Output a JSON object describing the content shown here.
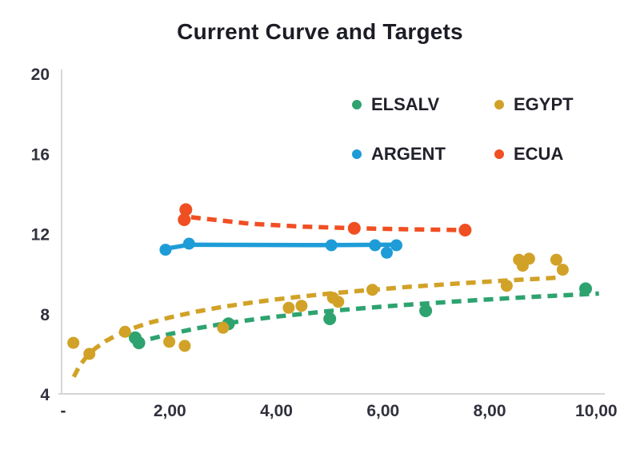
{
  "chart_data": {
    "type": "scatter",
    "title": "Current Curve and Targets",
    "background": "#ffffff",
    "axis_line_color": "#d6d6d6",
    "tick_text_color": "#31313e",
    "grid": false,
    "legend_position": "upper-right",
    "x_axis": {
      "min": 0,
      "max": 10.16,
      "ticks": [
        {
          "value": 0,
          "label": "-"
        },
        {
          "value": 2,
          "label": "2,00"
        },
        {
          "value": 4,
          "label": "4,00"
        },
        {
          "value": 6,
          "label": "6,00"
        },
        {
          "value": 8,
          "label": "8,00"
        },
        {
          "value": 10,
          "label": "10,00"
        }
      ]
    },
    "y_axis": {
      "min": 4,
      "max": 20,
      "ticks": [
        {
          "value": 4,
          "label": "4"
        },
        {
          "value": 8,
          "label": "8"
        },
        {
          "value": 12,
          "label": "12"
        },
        {
          "value": 16,
          "label": "16"
        },
        {
          "value": 20,
          "label": "20"
        }
      ]
    },
    "series": [
      {
        "name": "ELSALV",
        "color": "#2ea36f",
        "line_style": "dashed",
        "marker_radius": 8,
        "points": [
          [
            1.35,
            6.8
          ],
          [
            1.42,
            6.55
          ],
          [
            3.1,
            7.5
          ],
          [
            5.0,
            7.75
          ],
          [
            6.8,
            8.15
          ],
          [
            9.8,
            9.25
          ]
        ],
        "trend": [
          [
            1.35,
            6.5
          ],
          [
            1.6,
            6.72
          ],
          [
            2.0,
            6.99
          ],
          [
            2.5,
            7.27
          ],
          [
            3.0,
            7.5
          ],
          [
            3.5,
            7.69
          ],
          [
            4.0,
            7.86
          ],
          [
            4.5,
            8.0
          ],
          [
            5.0,
            8.14
          ],
          [
            5.5,
            8.25
          ],
          [
            6.0,
            8.36
          ],
          [
            6.5,
            8.46
          ],
          [
            7.0,
            8.55
          ],
          [
            7.5,
            8.64
          ],
          [
            8.0,
            8.72
          ],
          [
            8.5,
            8.8
          ],
          [
            9.0,
            8.87
          ],
          [
            9.5,
            8.94
          ],
          [
            10.05,
            9.01
          ]
        ]
      },
      {
        "name": "EGYPT",
        "color": "#d1a227",
        "line_style": "dashed",
        "marker_radius": 7.5,
        "points": [
          [
            0.19,
            6.55
          ],
          [
            0.49,
            6.0
          ],
          [
            1.16,
            7.1
          ],
          [
            1.99,
            6.6
          ],
          [
            2.28,
            6.4
          ],
          [
            3.0,
            7.3
          ],
          [
            4.23,
            8.3
          ],
          [
            4.47,
            8.4
          ],
          [
            5.06,
            8.8
          ],
          [
            5.16,
            8.6
          ],
          [
            5.8,
            9.2
          ],
          [
            8.32,
            9.4
          ],
          [
            8.55,
            10.7
          ],
          [
            8.62,
            10.4
          ],
          [
            8.74,
            10.75
          ],
          [
            9.25,
            10.7
          ],
          [
            9.37,
            10.2
          ]
        ],
        "trend": [
          [
            0.2,
            4.85
          ],
          [
            0.3,
            5.38
          ],
          [
            0.45,
            5.9
          ],
          [
            0.6,
            6.27
          ],
          [
            0.8,
            6.64
          ],
          [
            1.0,
            6.93
          ],
          [
            1.3,
            7.27
          ],
          [
            1.6,
            7.54
          ],
          [
            2.0,
            7.82
          ],
          [
            2.5,
            8.11
          ],
          [
            3.0,
            8.35
          ],
          [
            3.5,
            8.55
          ],
          [
            4.0,
            8.72
          ],
          [
            4.5,
            8.87
          ],
          [
            5.0,
            9.01
          ],
          [
            5.5,
            9.13
          ],
          [
            6.0,
            9.24
          ],
          [
            6.5,
            9.35
          ],
          [
            7.0,
            9.44
          ],
          [
            7.5,
            9.53
          ],
          [
            8.0,
            9.61
          ],
          [
            8.5,
            9.69
          ],
          [
            9.0,
            9.76
          ],
          [
            9.3,
            9.81
          ]
        ]
      },
      {
        "name": "ARGENT",
        "color": "#1e9cd7",
        "line_style": "solid",
        "marker_radius": 7.5,
        "points": [
          [
            1.92,
            11.2
          ],
          [
            2.36,
            11.5
          ],
          [
            5.03,
            11.42
          ],
          [
            5.85,
            11.42
          ],
          [
            6.07,
            11.05
          ],
          [
            6.25,
            11.42
          ]
        ],
        "trend": [
          [
            1.92,
            11.25
          ],
          [
            2.36,
            11.45
          ],
          [
            5.03,
            11.43
          ],
          [
            6.25,
            11.45
          ]
        ]
      },
      {
        "name": "ECUA",
        "color": "#f04f23",
        "line_style": "dashed",
        "marker_radius": 8,
        "points": [
          [
            2.3,
            13.2
          ],
          [
            2.27,
            12.7
          ],
          [
            5.46,
            12.27
          ],
          [
            7.54,
            12.18
          ]
        ],
        "trend": [
          [
            2.4,
            12.82
          ],
          [
            3.5,
            12.5
          ],
          [
            4.5,
            12.35
          ],
          [
            5.46,
            12.27
          ],
          [
            6.5,
            12.22
          ],
          [
            7.54,
            12.18
          ]
        ]
      }
    ]
  }
}
